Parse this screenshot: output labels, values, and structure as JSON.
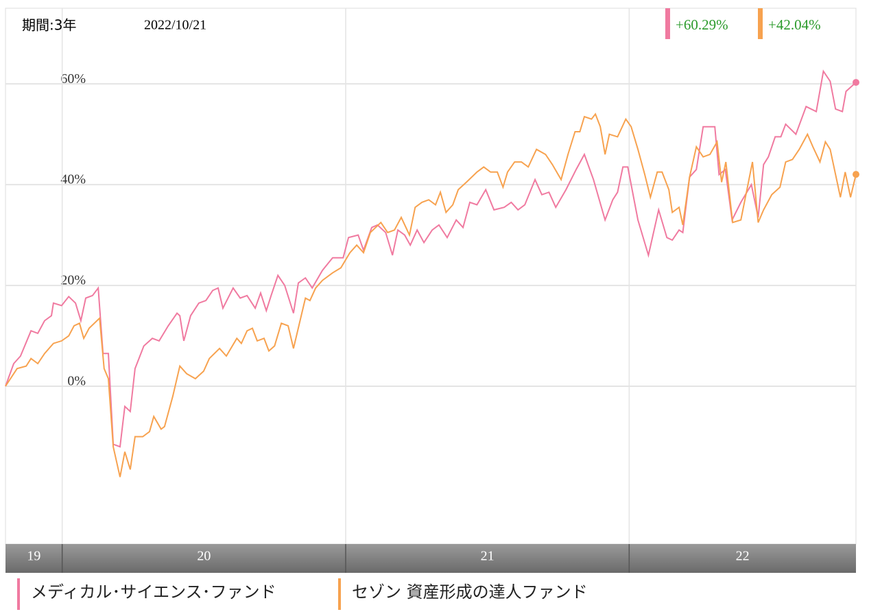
{
  "chart_data": {
    "type": "line",
    "period": "期間:3年",
    "date": "2022/10/21",
    "xlim": [
      2019.8,
      2022.8
    ],
    "ylim": [
      -31.3,
      75
    ],
    "yticks": [
      {
        "value": 0,
        "label": "0%"
      },
      {
        "value": 20,
        "label": "20%"
      },
      {
        "value": 40,
        "label": "40%"
      },
      {
        "value": 60,
        "label": "60%"
      }
    ],
    "xticks": [
      {
        "value": 2019.8,
        "label": "19"
      },
      {
        "value": 2020,
        "label": "20"
      },
      {
        "value": 2021,
        "label": "21"
      },
      {
        "value": 2022,
        "label": "22"
      }
    ],
    "grid": true,
    "label_color": "#2a9a2a",
    "series": [
      {
        "name": "メディカル･サイエンス･ファンド",
        "color": "#f07aa0",
        "end_label": "+60.29%",
        "x": [
          2019.8,
          2019.829,
          2019.853,
          2019.89,
          2019.914,
          2019.938,
          2019.962,
          2019.969,
          2019.998,
          2020.023,
          2020.047,
          2020.066,
          2020.083,
          2020.107,
          2020.127,
          2020.144,
          2020.163,
          2020.18,
          2020.204,
          2020.221,
          2020.24,
          2020.257,
          2020.288,
          2020.318,
          2020.342,
          2020.374,
          2020.405,
          2020.415,
          2020.429,
          2020.453,
          2020.482,
          2020.507,
          2020.531,
          2020.55,
          2020.567,
          2020.603,
          2020.628,
          2020.652,
          2020.681,
          2020.7,
          2020.72,
          2020.737,
          2020.761,
          2020.785,
          2020.816,
          2020.833,
          2020.858,
          2020.882,
          2020.918,
          2020.954,
          2020.991,
          2021.01,
          2021.044,
          2021.063,
          2021.092,
          2021.112,
          2021.141,
          2021.165,
          2021.184,
          2021.208,
          2021.228,
          2021.252,
          2021.276,
          2021.305,
          2021.329,
          2021.358,
          2021.39,
          2021.414,
          2021.438,
          2021.463,
          2021.494,
          2021.523,
          2021.559,
          2021.584,
          2021.608,
          2021.632,
          2021.668,
          2021.692,
          2021.717,
          2021.741,
          2021.777,
          2021.813,
          2021.842,
          2021.874,
          2021.915,
          2021.942,
          2021.959,
          2021.978,
          2021.995,
          2022.031,
          2022.068,
          2022.104,
          2022.133,
          2022.152,
          2022.176,
          2022.189,
          2022.213,
          2022.237,
          2022.261,
          2022.302,
          2022.317,
          2022.339,
          2022.363,
          2022.394,
          2022.431,
          2022.455,
          2022.474,
          2022.491,
          2022.515,
          2022.535,
          2022.552,
          2022.588,
          2022.624,
          2022.66,
          2022.685,
          2022.709,
          2022.728,
          2022.752,
          2022.765,
          2022.8
        ],
        "values": [
          0,
          4.5,
          6,
          11,
          10.5,
          13,
          14,
          16.5,
          16,
          17.8,
          16.5,
          13,
          17.5,
          18,
          19.5,
          6.5,
          6.5,
          -11.5,
          -12,
          -4,
          -5,
          3.5,
          8,
          9.5,
          9,
          12,
          14.5,
          14,
          9,
          14,
          16.5,
          17,
          19,
          19.5,
          15.5,
          19.5,
          17.5,
          18,
          15.5,
          18.5,
          15,
          18,
          22,
          20,
          14.5,
          20.5,
          21.5,
          19.5,
          23,
          25.5,
          25.5,
          29.5,
          30,
          27,
          31.5,
          32,
          30.5,
          26,
          31,
          30,
          28,
          31,
          28.5,
          31,
          32,
          29.5,
          33,
          31.5,
          36.5,
          36,
          39,
          35,
          35.5,
          36.5,
          35,
          36,
          41,
          38,
          38.5,
          35.5,
          39,
          43,
          46,
          41,
          33,
          37,
          38.5,
          43.5,
          43.5,
          33,
          26,
          35,
          29.5,
          29,
          31,
          30.5,
          41.5,
          43,
          51.5,
          51.5,
          42,
          43,
          33,
          36.5,
          40,
          33.5,
          44,
          45.5,
          49.5,
          49.5,
          52,
          50,
          55.5,
          54.5,
          62.5,
          60.5,
          55,
          54.5,
          58.5,
          60.29
        ]
      },
      {
        "name": "セゾン 資産形成の達人ファンド",
        "color": "#f7a24f",
        "end_label": "+42.04%",
        "x": [
          2019.8,
          2019.841,
          2019.873,
          2019.89,
          2019.914,
          2019.938,
          2019.969,
          2019.998,
          2020.023,
          2020.042,
          2020.061,
          2020.076,
          2020.095,
          2020.132,
          2020.148,
          2020.163,
          2020.18,
          2020.204,
          2020.221,
          2020.24,
          2020.257,
          2020.284,
          2020.308,
          2020.323,
          2020.349,
          2020.361,
          2020.39,
          2020.415,
          2020.439,
          2020.47,
          2020.499,
          2020.519,
          2020.555,
          2020.579,
          2020.616,
          2020.632,
          2020.652,
          2020.671,
          2020.688,
          2020.712,
          2020.729,
          2020.749,
          2020.773,
          2020.797,
          2020.816,
          2020.858,
          2020.874,
          2020.894,
          2020.918,
          2020.954,
          2020.983,
          2021.015,
          2021.039,
          2021.063,
          2021.087,
          2021.124,
          2021.148,
          2021.172,
          2021.196,
          2021.225,
          2021.245,
          2021.269,
          2021.293,
          2021.317,
          2021.334,
          2021.354,
          2021.378,
          2021.397,
          2021.426,
          2021.463,
          2021.487,
          2021.511,
          2021.535,
          2021.555,
          2021.571,
          2021.596,
          2021.62,
          2021.644,
          2021.673,
          2021.705,
          2021.729,
          2021.76,
          2021.784,
          2021.809,
          2021.826,
          2021.842,
          2021.867,
          2021.881,
          2021.898,
          2021.915,
          2021.93,
          2021.959,
          2021.988,
          2022.007,
          2022.031,
          2022.055,
          2022.075,
          2022.099,
          2022.116,
          2022.14,
          2022.152,
          2022.176,
          2022.189,
          2022.213,
          2022.237,
          2022.261,
          2022.285,
          2022.31,
          2022.326,
          2022.341,
          2022.365,
          2022.394,
          2022.435,
          2022.455,
          2022.474,
          2022.503,
          2022.532,
          2022.552,
          2022.576,
          2022.6,
          2022.629,
          2022.648,
          2022.673,
          2022.692,
          2022.709,
          2022.745,
          2022.762,
          2022.781,
          2022.8
        ],
        "values": [
          0,
          3.5,
          4,
          5.5,
          4.5,
          6.5,
          8.5,
          9,
          10,
          12,
          12.5,
          9.5,
          11.5,
          13.5,
          3.5,
          1.5,
          -12,
          -18,
          -13,
          -16.5,
          -10,
          -10,
          -9,
          -6,
          -8.5,
          -8,
          -2,
          4,
          2.5,
          1.5,
          3,
          5.5,
          7.5,
          6,
          9.5,
          8.5,
          11,
          11.5,
          9,
          9.5,
          7,
          8,
          12.5,
          12,
          7.5,
          17.5,
          17,
          19.5,
          21,
          22.5,
          23.5,
          26.5,
          28,
          26.5,
          30.5,
          32.5,
          30.5,
          31,
          33.5,
          30,
          35.5,
          36.5,
          37,
          36,
          38.5,
          34.5,
          36,
          39,
          40.5,
          42.5,
          43.5,
          42.5,
          42.5,
          39.5,
          42.5,
          44.5,
          44.5,
          43.5,
          47,
          46,
          44,
          41,
          46,
          50.5,
          50.5,
          53.5,
          53,
          54,
          51.5,
          46,
          50,
          49.5,
          53,
          51.5,
          47,
          42,
          37.5,
          42.5,
          42.5,
          39,
          34.5,
          35.5,
          32,
          41.5,
          47.5,
          45.5,
          46,
          48.5,
          40.5,
          44.5,
          32.5,
          33,
          44.5,
          32.5,
          35,
          38,
          39.5,
          44.5,
          45,
          47,
          50,
          47.5,
          44.5,
          48.5,
          47,
          37.5,
          42.5,
          37.5,
          42.04
        ]
      }
    ]
  }
}
